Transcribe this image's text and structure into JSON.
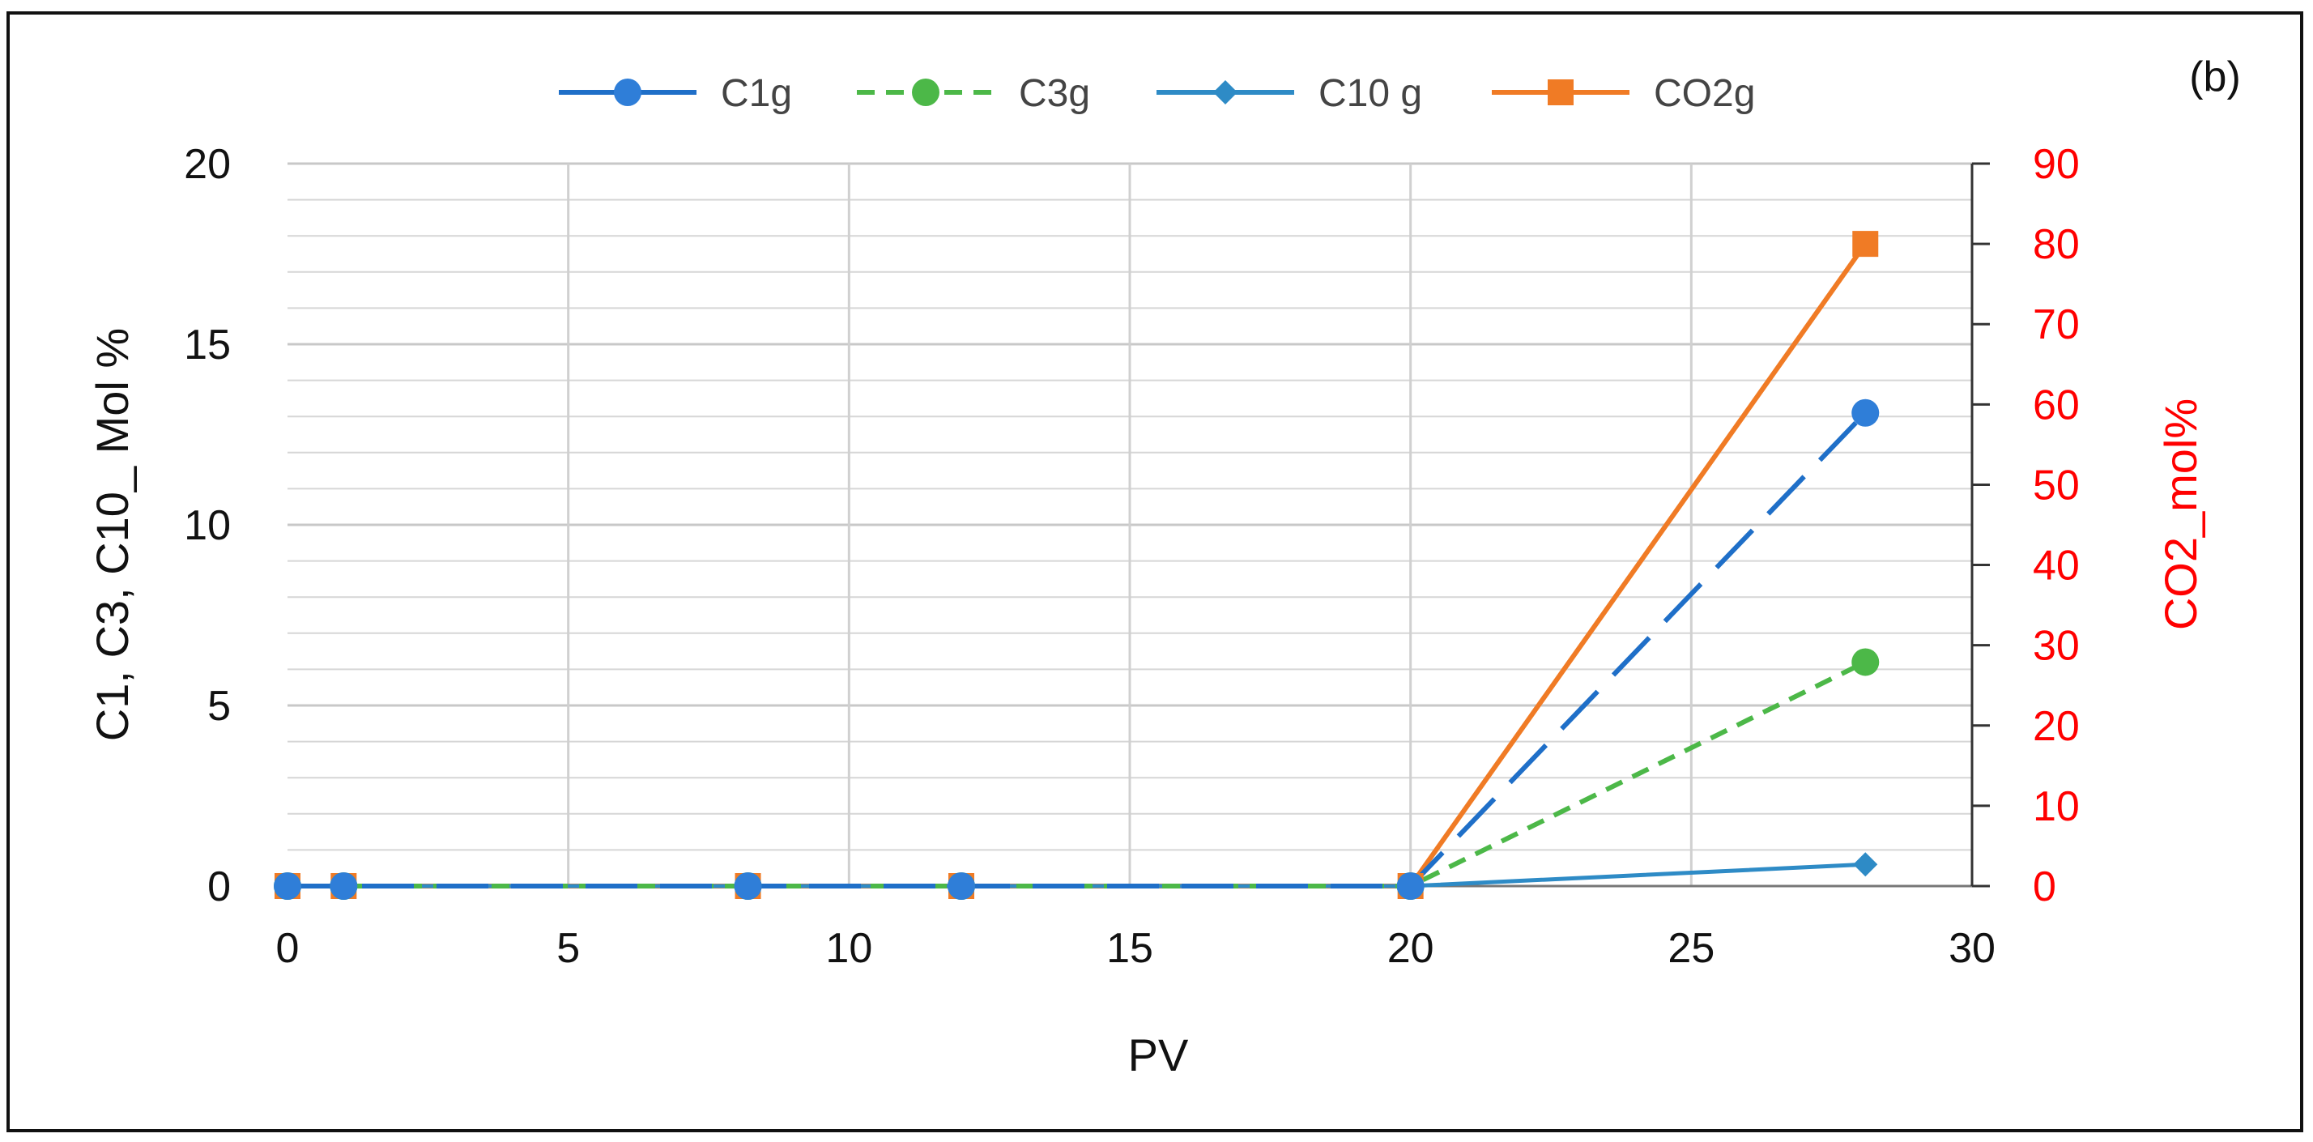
{
  "chart_data": {
    "type": "line",
    "panel_label": "(b)",
    "xlabel": "PV",
    "ylabel": "C1, C3, C10_ Mol %",
    "y2label": "CO2_mol%",
    "xlim": [
      0,
      30
    ],
    "ylim": [
      0,
      20
    ],
    "y2lim": [
      0,
      90
    ],
    "xticks": [
      "0",
      "5",
      "10",
      "15",
      "20",
      "25",
      "30"
    ],
    "yticks": [
      "0",
      "5",
      "10",
      "15",
      "20"
    ],
    "y2ticks": [
      "0",
      "10",
      "20",
      "30",
      "40",
      "50",
      "60",
      "70",
      "80",
      "90"
    ],
    "grid": true,
    "legend_position": "top",
    "series": [
      {
        "name": "C1g",
        "axis": "left",
        "color": "#2f7ed8",
        "line_color": "#1f6fc8",
        "dash": "long-dash",
        "marker": "circle",
        "x": [
          0,
          1,
          8.2,
          12,
          20,
          28.1
        ],
        "y": [
          0,
          0,
          0,
          0,
          0,
          13.1
        ]
      },
      {
        "name": "C3g",
        "axis": "left",
        "color": "#4cb848",
        "line_color": "#4cb848",
        "dash": "short-dash",
        "marker": "circle",
        "x": [
          0,
          1,
          8.2,
          12,
          20,
          28.1
        ],
        "y": [
          0,
          0,
          0,
          0,
          0,
          6.2
        ]
      },
      {
        "name": "C10 g",
        "axis": "left",
        "color": "#2e8bc6",
        "line_color": "#2e8bc6",
        "dash": "solid",
        "marker": "diamond",
        "x": [
          0,
          1,
          8.2,
          12,
          20,
          28.1
        ],
        "y": [
          0,
          0,
          0,
          0,
          0,
          0.6
        ]
      },
      {
        "name": "CO2g",
        "axis": "right",
        "color": "#f07b25",
        "line_color": "#f07b25",
        "dash": "solid",
        "marker": "square",
        "x": [
          0,
          1,
          8.2,
          12,
          20,
          28.1
        ],
        "y": [
          0,
          0,
          0,
          0,
          0,
          80
        ]
      }
    ]
  }
}
